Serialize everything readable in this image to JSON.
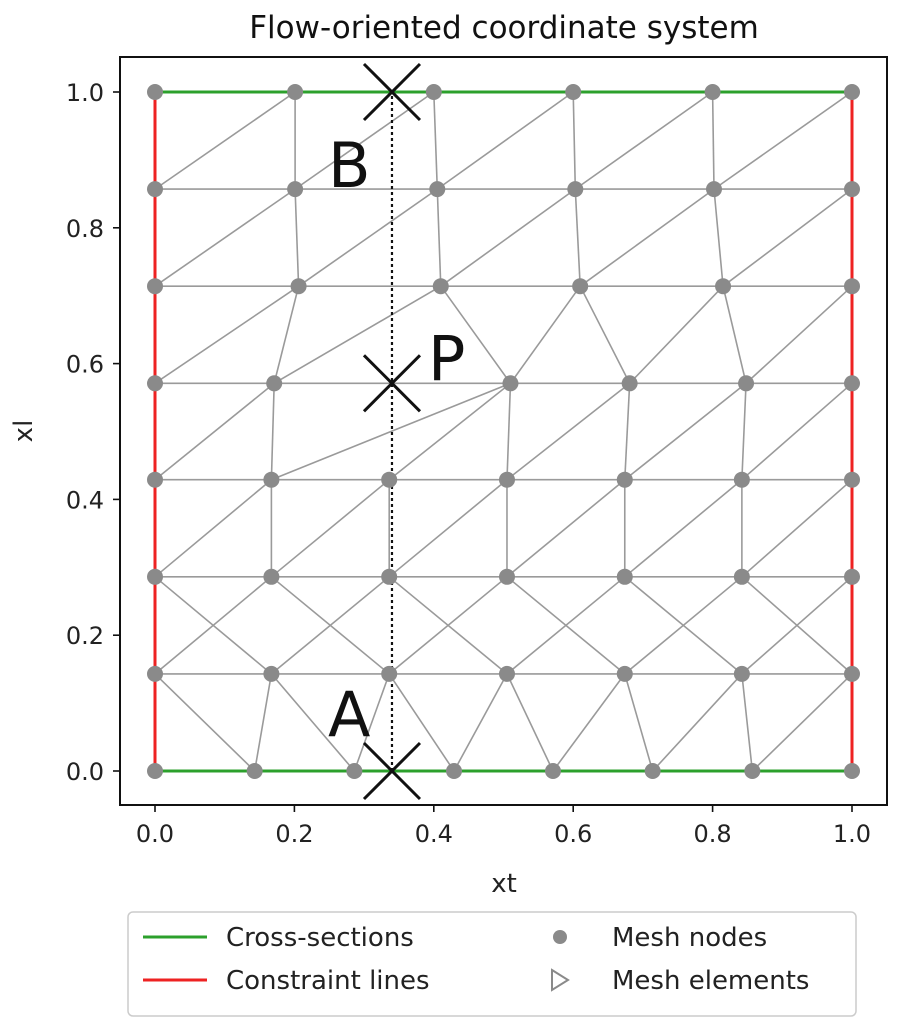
{
  "title": "Flow-oriented coordinate system",
  "xlabel": "xt",
  "ylabel": "xl",
  "colors": {
    "cross_section": "#2ca02c",
    "constraint": "#ee2222",
    "mesh_edge": "#9a9a9a",
    "mesh_node": "#8a8a8a"
  },
  "chart_data": {
    "type": "scatter",
    "xlim": [
      -0.05,
      1.05
    ],
    "ylim": [
      -0.05,
      1.05
    ],
    "x_ticks": [
      "0.0",
      "0.2",
      "0.4",
      "0.6",
      "0.8",
      "1.0"
    ],
    "y_ticks": [
      "0.0",
      "0.2",
      "0.4",
      "0.6",
      "0.8",
      "1.0"
    ],
    "x_tick_values": [
      0,
      0.2,
      0.4,
      0.6,
      0.8,
      1.0
    ],
    "y_tick_values": [
      0,
      0.2,
      0.4,
      0.6,
      0.8,
      1.0
    ],
    "grid": false,
    "legend_placement": "below",
    "cross_sections": [
      [
        [
          0,
          0
        ],
        [
          1,
          0
        ]
      ],
      [
        [
          0,
          1
        ],
        [
          1,
          1
        ]
      ]
    ],
    "constraint_lines": [
      [
        [
          0,
          0
        ],
        [
          0,
          1
        ]
      ],
      [
        [
          1,
          0
        ],
        [
          1,
          1
        ]
      ]
    ],
    "mesh_nodes": [
      [
        0,
        0
      ],
      [
        0.143,
        0
      ],
      [
        0.286,
        0
      ],
      [
        0.429,
        0
      ],
      [
        0.571,
        0
      ],
      [
        0.714,
        0
      ],
      [
        0.857,
        0
      ],
      [
        1,
        0
      ],
      [
        0,
        0.143
      ],
      [
        0.167,
        0.143
      ],
      [
        0.336,
        0.143
      ],
      [
        0.505,
        0.143
      ],
      [
        0.674,
        0.143
      ],
      [
        0.842,
        0.143
      ],
      [
        1,
        0.143
      ],
      [
        0,
        0.286
      ],
      [
        0.167,
        0.286
      ],
      [
        0.336,
        0.286
      ],
      [
        0.505,
        0.286
      ],
      [
        0.674,
        0.286
      ],
      [
        0.842,
        0.286
      ],
      [
        1,
        0.286
      ],
      [
        0,
        0.429
      ],
      [
        0.167,
        0.429
      ],
      [
        0.336,
        0.429
      ],
      [
        0.505,
        0.429
      ],
      [
        0.674,
        0.429
      ],
      [
        0.842,
        0.429
      ],
      [
        1,
        0.429
      ],
      [
        0,
        0.571
      ],
      [
        0.171,
        0.571
      ],
      [
        0.51,
        0.571
      ],
      [
        0.681,
        0.571
      ],
      [
        0.848,
        0.571
      ],
      [
        1,
        0.571
      ],
      [
        0,
        0.714
      ],
      [
        0.206,
        0.714
      ],
      [
        0.41,
        0.714
      ],
      [
        0.61,
        0.714
      ],
      [
        0.815,
        0.714
      ],
      [
        1,
        0.714
      ],
      [
        0,
        0.857
      ],
      [
        0.201,
        0.857
      ],
      [
        0.405,
        0.857
      ],
      [
        0.603,
        0.857
      ],
      [
        0.802,
        0.857
      ],
      [
        1,
        0.857
      ],
      [
        0,
        1
      ],
      [
        0.201,
        1
      ],
      [
        0.4,
        1
      ],
      [
        0.6,
        1
      ],
      [
        0.8,
        1
      ],
      [
        1,
        1
      ]
    ],
    "mesh_edges": [
      [
        0,
        1
      ],
      [
        1,
        2
      ],
      [
        2,
        3
      ],
      [
        3,
        4
      ],
      [
        4,
        5
      ],
      [
        5,
        6
      ],
      [
        6,
        7
      ],
      [
        8,
        9
      ],
      [
        9,
        10
      ],
      [
        10,
        11
      ],
      [
        11,
        12
      ],
      [
        12,
        13
      ],
      [
        13,
        14
      ],
      [
        15,
        16
      ],
      [
        16,
        17
      ],
      [
        17,
        18
      ],
      [
        18,
        19
      ],
      [
        19,
        20
      ],
      [
        20,
        21
      ],
      [
        22,
        23
      ],
      [
        23,
        24
      ],
      [
        24,
        25
      ],
      [
        25,
        26
      ],
      [
        26,
        27
      ],
      [
        27,
        28
      ],
      [
        29,
        30
      ],
      [
        30,
        31
      ],
      [
        31,
        32
      ],
      [
        32,
        33
      ],
      [
        33,
        34
      ],
      [
        35,
        36
      ],
      [
        36,
        37
      ],
      [
        37,
        38
      ],
      [
        38,
        39
      ],
      [
        39,
        40
      ],
      [
        41,
        42
      ],
      [
        42,
        43
      ],
      [
        43,
        44
      ],
      [
        44,
        45
      ],
      [
        45,
        46
      ],
      [
        47,
        48
      ],
      [
        48,
        49
      ],
      [
        49,
        50
      ],
      [
        50,
        51
      ],
      [
        51,
        52
      ],
      [
        0,
        8
      ],
      [
        8,
        15
      ],
      [
        15,
        22
      ],
      [
        22,
        29
      ],
      [
        29,
        35
      ],
      [
        35,
        41
      ],
      [
        41,
        47
      ],
      [
        7,
        14
      ],
      [
        14,
        21
      ],
      [
        21,
        28
      ],
      [
        28,
        34
      ],
      [
        34,
        40
      ],
      [
        40,
        46
      ],
      [
        46,
        52
      ],
      [
        8,
        1
      ],
      [
        1,
        9
      ],
      [
        9,
        2
      ],
      [
        2,
        10
      ],
      [
        10,
        3
      ],
      [
        3,
        11
      ],
      [
        11,
        4
      ],
      [
        4,
        12
      ],
      [
        12,
        5
      ],
      [
        5,
        13
      ],
      [
        13,
        6
      ],
      [
        6,
        14
      ],
      [
        9,
        15
      ],
      [
        16,
        8
      ],
      [
        10,
        16
      ],
      [
        17,
        9
      ],
      [
        11,
        17
      ],
      [
        18,
        10
      ],
      [
        12,
        18
      ],
      [
        19,
        11
      ],
      [
        13,
        19
      ],
      [
        20,
        12
      ],
      [
        14,
        20
      ],
      [
        13,
        21
      ],
      [
        15,
        23
      ],
      [
        16,
        23
      ],
      [
        16,
        24
      ],
      [
        17,
        24
      ],
      [
        17,
        25
      ],
      [
        18,
        25
      ],
      [
        18,
        26
      ],
      [
        19,
        26
      ],
      [
        19,
        27
      ],
      [
        20,
        27
      ],
      [
        20,
        28
      ],
      [
        22,
        30
      ],
      [
        23,
        30
      ],
      [
        23,
        31
      ],
      [
        24,
        31
      ],
      [
        25,
        31
      ],
      [
        25,
        32
      ],
      [
        26,
        32
      ],
      [
        26,
        33
      ],
      [
        27,
        33
      ],
      [
        27,
        34
      ],
      [
        29,
        36
      ],
      [
        30,
        36
      ],
      [
        30,
        37
      ],
      [
        31,
        37
      ],
      [
        31,
        38
      ],
      [
        32,
        38
      ],
      [
        32,
        39
      ],
      [
        33,
        39
      ],
      [
        33,
        40
      ],
      [
        35,
        42
      ],
      [
        36,
        42
      ],
      [
        36,
        43
      ],
      [
        37,
        43
      ],
      [
        37,
        44
      ],
      [
        38,
        44
      ],
      [
        38,
        45
      ],
      [
        39,
        45
      ],
      [
        39,
        46
      ],
      [
        41,
        48
      ],
      [
        42,
        48
      ],
      [
        42,
        49
      ],
      [
        43,
        49
      ],
      [
        43,
        50
      ],
      [
        44,
        50
      ],
      [
        44,
        51
      ],
      [
        45,
        51
      ],
      [
        45,
        52
      ]
    ],
    "dotted_line": [
      [
        0.34,
        0
      ],
      [
        0.34,
        1
      ]
    ],
    "markers": [
      {
        "label": "B",
        "x": 0.34,
        "y": 1.0
      },
      {
        "label": "P",
        "x": 0.34,
        "y": 0.571
      },
      {
        "label": "A",
        "x": 0.34,
        "y": 0.0
      }
    ]
  },
  "legend": {
    "cross_sections": "Cross-sections",
    "constraint_lines": "Constraint lines",
    "mesh_nodes": "Mesh nodes",
    "mesh_elements": "Mesh elements"
  }
}
